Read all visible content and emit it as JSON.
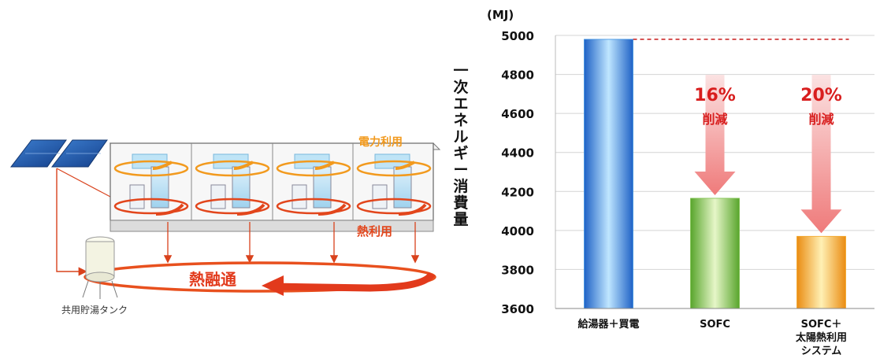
{
  "diagram": {
    "power_use_label": "電力利用",
    "heat_use_label": "熱利用",
    "heat_sharing_label": "熱融通",
    "tank_label": "共用貯湯タンク"
  },
  "chart_data": {
    "type": "bar",
    "unit": "(MJ)",
    "ylabel": "一次エネルギー消費量",
    "ylim": [
      3600,
      5000
    ],
    "yticks": [
      3600,
      3800,
      4000,
      4200,
      4400,
      4600,
      4800,
      5000
    ],
    "categories": [
      [
        "給湯器＋買電"
      ],
      [
        "SOFC"
      ],
      [
        "SOFC＋",
        "太陽熱利用",
        "システム"
      ]
    ],
    "values": [
      4980,
      4165,
      3970
    ],
    "bar_colors": [
      "#3a8fe0",
      "#7cc04a",
      "#f3a526"
    ],
    "annotations": [
      {
        "percent": "16%",
        "text": "削減"
      },
      {
        "percent": "20%",
        "text": "削減"
      }
    ]
  }
}
